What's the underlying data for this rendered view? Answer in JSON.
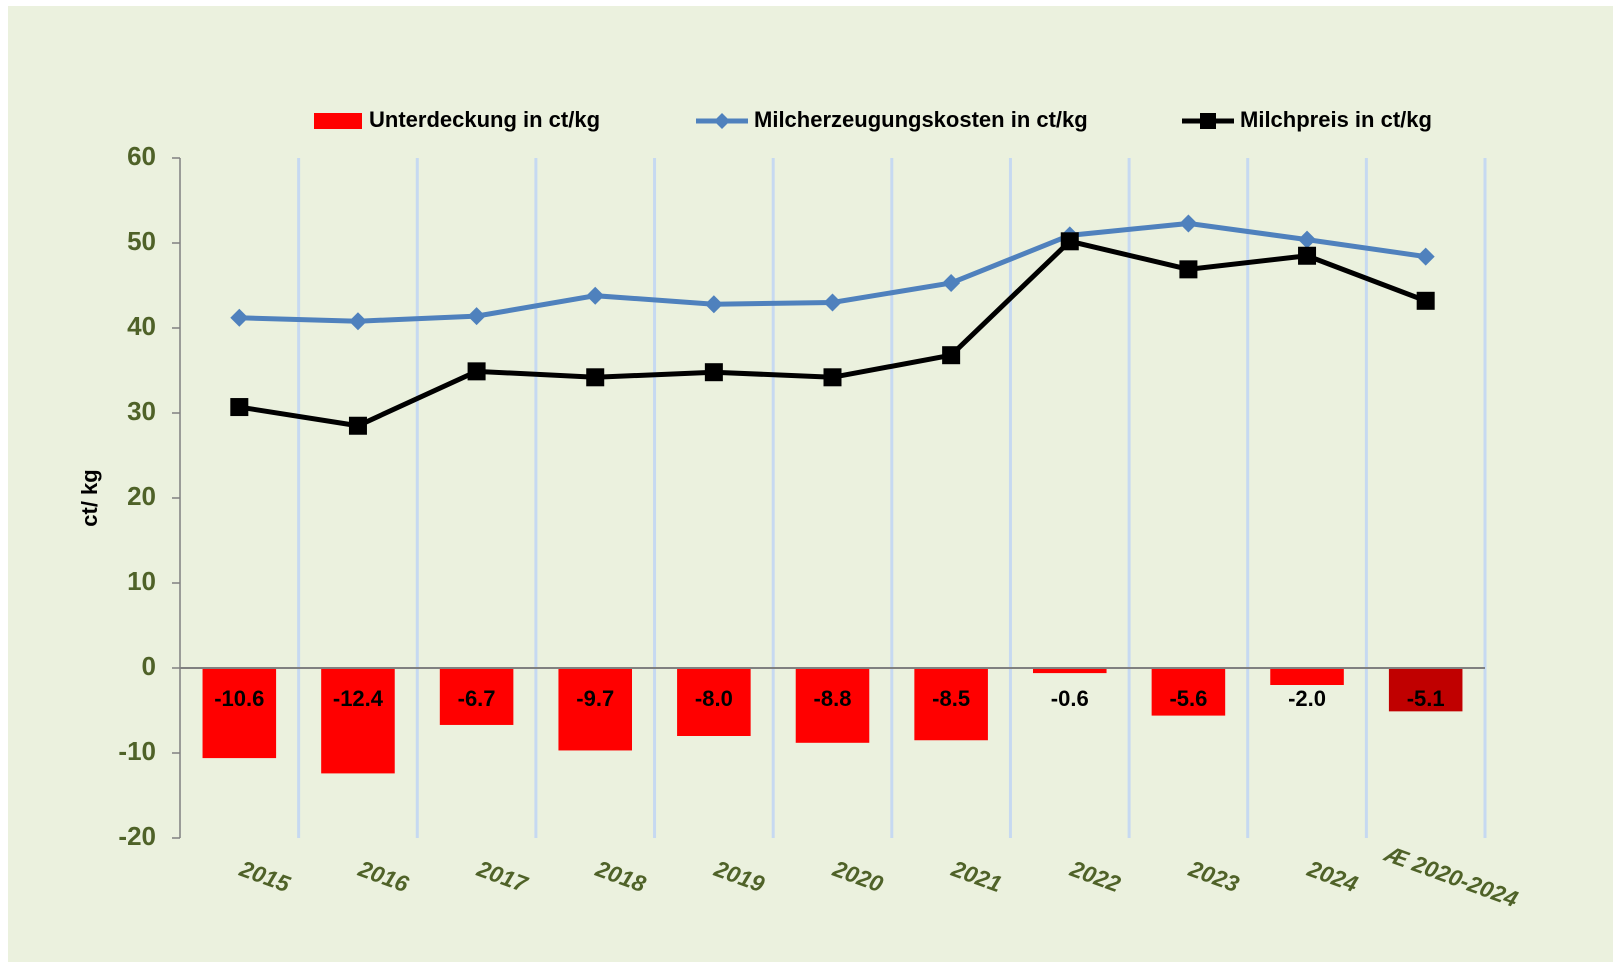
{
  "chart_data": {
    "type": "bar_line",
    "y_label": "ct/ kg",
    "categories": [
      "2015",
      "2016",
      "2017",
      "2018",
      "2019",
      "2020",
      "2021",
      "2022",
      "2023",
      "2024",
      "Æ 2020-2024"
    ],
    "series": [
      {
        "name": "Unterdeckung in ct/kg",
        "type": "bar",
        "color": "#ff0000",
        "colors": [
          "#ff0000",
          "#ff0000",
          "#ff0000",
          "#ff0000",
          "#ff0000",
          "#ff0000",
          "#ff0000",
          "#ff0000",
          "#ff0000",
          "#ff0000",
          "#c00000"
        ],
        "values": [
          -10.6,
          -12.4,
          -6.7,
          -9.7,
          -8.0,
          -8.8,
          -8.5,
          -0.6,
          -5.6,
          -2.0,
          -5.1
        ],
        "value_labels": [
          "-10.6",
          "-12.4",
          "-6.7",
          "-9.7",
          "-8.0",
          "-8.8",
          "-8.5",
          "-0.6",
          "-5.6",
          "-2.0",
          "-5.1"
        ]
      },
      {
        "name": "Milcherzeugungskosten in ct/kg",
        "type": "line",
        "marker": "diamond",
        "color": "#4f81bd",
        "values": [
          41.2,
          40.8,
          41.4,
          43.8,
          42.8,
          43.0,
          45.3,
          50.9,
          52.3,
          50.4,
          48.4
        ]
      },
      {
        "name": "Milchpreis in ct/kg",
        "type": "line",
        "marker": "square",
        "color": "#000000",
        "values": [
          30.7,
          28.5,
          34.9,
          34.2,
          34.8,
          34.2,
          36.8,
          50.2,
          46.9,
          48.5,
          43.2
        ]
      }
    ],
    "ylim": [
      -20,
      60
    ],
    "yticks": [
      -20,
      -10,
      0,
      10,
      20,
      30,
      40,
      50,
      60
    ]
  }
}
